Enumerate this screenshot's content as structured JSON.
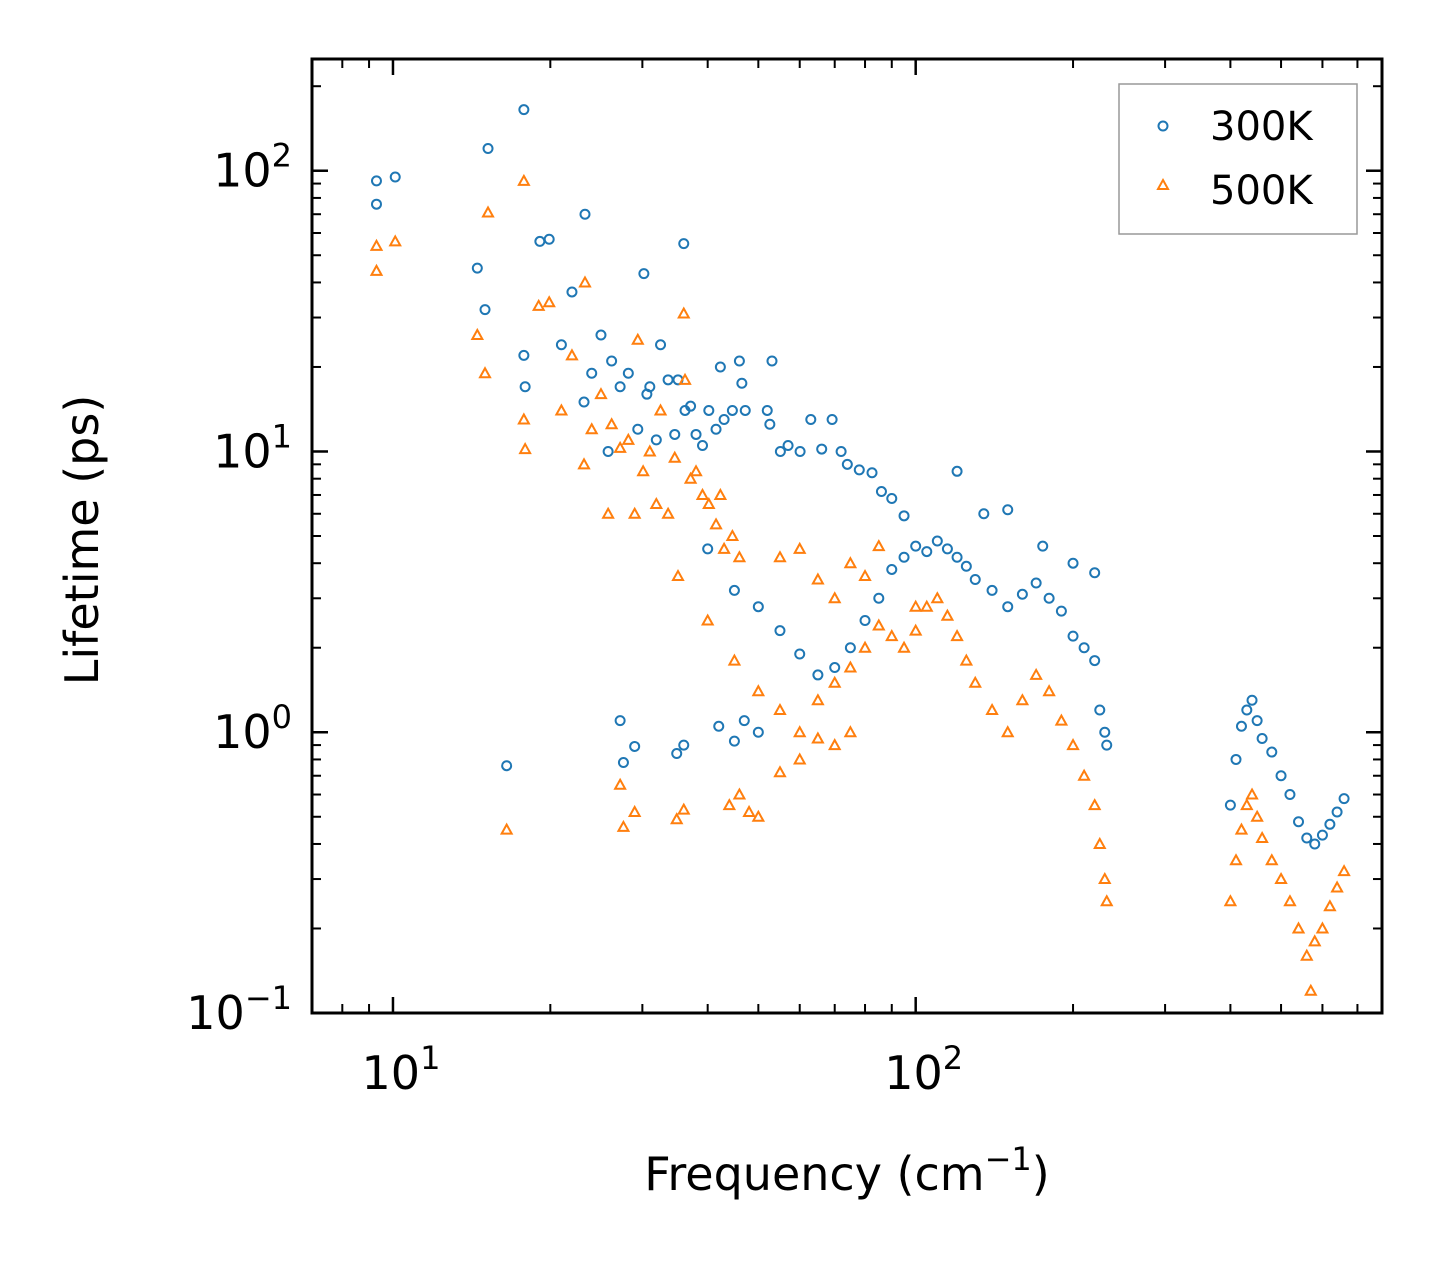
{
  "chart_data": {
    "type": "scatter",
    "title": "",
    "xlabel": "Frequency (cm⁻¹)",
    "xlabel_parts": {
      "main": "Frequency (cm",
      "sup": "−1",
      "close": ")"
    },
    "ylabel": "Lifetime (ps)",
    "xscale": "log",
    "yscale": "log",
    "xlim": [
      7,
      780
    ],
    "ylim": [
      0.1,
      250
    ],
    "x_tick_labels": [
      {
        "value": 10,
        "base": "10",
        "exp": "1"
      },
      {
        "value": 100,
        "base": "10",
        "exp": "2"
      }
    ],
    "y_tick_labels": [
      {
        "value": 0.1,
        "base": "10",
        "exp": "−1"
      },
      {
        "value": 1,
        "base": "10",
        "exp": "0"
      },
      {
        "value": 10,
        "base": "10",
        "exp": "1"
      },
      {
        "value": 100,
        "base": "10",
        "exp": "2"
      }
    ],
    "legend_position": "top-right",
    "series": [
      {
        "name": "300K",
        "marker": "circle",
        "color": "#1f77b4",
        "points": [
          [
            9.3,
            92
          ],
          [
            9.3,
            76
          ],
          [
            10.1,
            95
          ],
          [
            14.5,
            45
          ],
          [
            15.2,
            120
          ],
          [
            15.0,
            32
          ],
          [
            17.8,
            165
          ],
          [
            17.8,
            22
          ],
          [
            17.9,
            17
          ],
          [
            19.1,
            56
          ],
          [
            19.9,
            57
          ],
          [
            21.0,
            24
          ],
          [
            22.0,
            37
          ],
          [
            23.3,
            70
          ],
          [
            23.2,
            15
          ],
          [
            24.0,
            19
          ],
          [
            25.0,
            26
          ],
          [
            25.8,
            10
          ],
          [
            26.2,
            21
          ],
          [
            27.2,
            17
          ],
          [
            28.2,
            19
          ],
          [
            29.4,
            12
          ],
          [
            30.2,
            43
          ],
          [
            31.0,
            17
          ],
          [
            30.6,
            16
          ],
          [
            31.9,
            11
          ],
          [
            32.5,
            24
          ],
          [
            33.6,
            18
          ],
          [
            34.6,
            11.5
          ],
          [
            35.1,
            18
          ],
          [
            36.0,
            55
          ],
          [
            36.2,
            14
          ],
          [
            37.1,
            14.5
          ],
          [
            38.0,
            11.5
          ],
          [
            39.1,
            10.5
          ],
          [
            40.2,
            14
          ],
          [
            41.5,
            12
          ],
          [
            42.3,
            20
          ],
          [
            43.0,
            13
          ],
          [
            44.6,
            14
          ],
          [
            46.0,
            21
          ],
          [
            46.5,
            17.5
          ],
          [
            47.2,
            14
          ],
          [
            53.1,
            21
          ],
          [
            52.0,
            14
          ],
          [
            52.6,
            12.5
          ],
          [
            55.1,
            10
          ],
          [
            57.0,
            10.5
          ],
          [
            60.1,
            10
          ],
          [
            63.0,
            13
          ],
          [
            66.1,
            10.2
          ],
          [
            69.2,
            13
          ],
          [
            72.0,
            10
          ],
          [
            74.0,
            9
          ],
          [
            78.0,
            8.6
          ],
          [
            82.5,
            8.4
          ],
          [
            86.0,
            7.2
          ],
          [
            90.0,
            6.8
          ],
          [
            95.0,
            5.9
          ],
          [
            120.0,
            8.5
          ],
          [
            135.0,
            6.0
          ],
          [
            150.0,
            6.2
          ],
          [
            175.0,
            4.6
          ],
          [
            200.0,
            4.0
          ],
          [
            220.0,
            3.7
          ],
          [
            16.5,
            0.76
          ],
          [
            27.2,
            1.1
          ],
          [
            27.6,
            0.78
          ],
          [
            29.0,
            0.89
          ],
          [
            34.9,
            0.84
          ],
          [
            36.0,
            0.9
          ],
          [
            42.0,
            1.05
          ],
          [
            45.0,
            0.93
          ],
          [
            47.0,
            1.1
          ],
          [
            50.0,
            1.0
          ],
          [
            40.0,
            4.5
          ],
          [
            45.0,
            3.2
          ],
          [
            50.0,
            2.8
          ],
          [
            55.0,
            2.3
          ],
          [
            60.0,
            1.9
          ],
          [
            65.0,
            1.6
          ],
          [
            70.0,
            1.7
          ],
          [
            75.0,
            2.0
          ],
          [
            80.0,
            2.5
          ],
          [
            85.0,
            3.0
          ],
          [
            90.0,
            3.8
          ],
          [
            95.0,
            4.2
          ],
          [
            100.0,
            4.6
          ],
          [
            105.0,
            4.4
          ],
          [
            110.0,
            4.8
          ],
          [
            115.0,
            4.5
          ],
          [
            120.0,
            4.2
          ],
          [
            125.0,
            3.9
          ],
          [
            130.0,
            3.5
          ],
          [
            140.0,
            3.2
          ],
          [
            150.0,
            2.8
          ],
          [
            160.0,
            3.1
          ],
          [
            170.0,
            3.4
          ],
          [
            180.0,
            3.0
          ],
          [
            190.0,
            2.7
          ],
          [
            200.0,
            2.2
          ],
          [
            210.0,
            2.0
          ],
          [
            220.0,
            1.8
          ],
          [
            225.0,
            1.2
          ],
          [
            230.0,
            1.0
          ],
          [
            232.0,
            0.9
          ],
          [
            400.0,
            0.55
          ],
          [
            410.0,
            0.8
          ],
          [
            420.0,
            1.05
          ],
          [
            430.0,
            1.2
          ],
          [
            440.0,
            1.3
          ],
          [
            450.0,
            1.1
          ],
          [
            460.0,
            0.95
          ],
          [
            480.0,
            0.85
          ],
          [
            500.0,
            0.7
          ],
          [
            520.0,
            0.6
          ],
          [
            540.0,
            0.48
          ],
          [
            560.0,
            0.42
          ],
          [
            580.0,
            0.4
          ],
          [
            600.0,
            0.43
          ],
          [
            620.0,
            0.47
          ],
          [
            640.0,
            0.52
          ],
          [
            660.0,
            0.58
          ]
        ]
      },
      {
        "name": "500K",
        "marker": "triangle",
        "color": "#ff7f0e",
        "points": [
          [
            9.3,
            54
          ],
          [
            9.3,
            44
          ],
          [
            10.1,
            56
          ],
          [
            14.5,
            26
          ],
          [
            15.0,
            19
          ],
          [
            15.2,
            71
          ],
          [
            16.5,
            0.45
          ],
          [
            17.8,
            92
          ],
          [
            17.8,
            13
          ],
          [
            17.9,
            10.2
          ],
          [
            19.0,
            33
          ],
          [
            19.9,
            34
          ],
          [
            21.0,
            14
          ],
          [
            22.0,
            22
          ],
          [
            23.2,
            9
          ],
          [
            23.3,
            40
          ],
          [
            24.0,
            12
          ],
          [
            25.0,
            16
          ],
          [
            25.8,
            6
          ],
          [
            26.2,
            12.5
          ],
          [
            27.2,
            10.3
          ],
          [
            28.2,
            11
          ],
          [
            29.0,
            6
          ],
          [
            29.4,
            25
          ],
          [
            30.1,
            8.5
          ],
          [
            31.0,
            10
          ],
          [
            31.9,
            6.5
          ],
          [
            32.5,
            14
          ],
          [
            33.6,
            6
          ],
          [
            34.6,
            9.5
          ],
          [
            35.1,
            3.6
          ],
          [
            36.0,
            31
          ],
          [
            36.2,
            18
          ],
          [
            37.1,
            8
          ],
          [
            38.0,
            8.5
          ],
          [
            39.1,
            7
          ],
          [
            40.2,
            6.5
          ],
          [
            41.5,
            5.5
          ],
          [
            42.3,
            7
          ],
          [
            43.0,
            4.5
          ],
          [
            44.6,
            5
          ],
          [
            46.0,
            4.2
          ],
          [
            27.2,
            0.65
          ],
          [
            27.6,
            0.46
          ],
          [
            29.0,
            0.52
          ],
          [
            34.9,
            0.49
          ],
          [
            36.0,
            0.53
          ],
          [
            44.0,
            0.55
          ],
          [
            46.0,
            0.6
          ],
          [
            48.0,
            0.52
          ],
          [
            50.0,
            0.5
          ],
          [
            55.0,
            0.72
          ],
          [
            60.0,
            0.8
          ],
          [
            65.0,
            0.95
          ],
          [
            70.0,
            0.9
          ],
          [
            75.0,
            1.0
          ],
          [
            40.0,
            2.5
          ],
          [
            45.0,
            1.8
          ],
          [
            50.0,
            1.4
          ],
          [
            55.0,
            1.2
          ],
          [
            60.0,
            1.0
          ],
          [
            65.0,
            1.3
          ],
          [
            70.0,
            1.5
          ],
          [
            75.0,
            1.7
          ],
          [
            80.0,
            2.0
          ],
          [
            85.0,
            2.4
          ],
          [
            90.0,
            2.2
          ],
          [
            95.0,
            2.0
          ],
          [
            100.0,
            2.3
          ],
          [
            105.0,
            2.8
          ],
          [
            110.0,
            3.0
          ],
          [
            115.0,
            2.6
          ],
          [
            120.0,
            2.2
          ],
          [
            125.0,
            1.8
          ],
          [
            130.0,
            1.5
          ],
          [
            140.0,
            1.2
          ],
          [
            150.0,
            1.0
          ],
          [
            160.0,
            1.3
          ],
          [
            170.0,
            1.6
          ],
          [
            180.0,
            1.4
          ],
          [
            190.0,
            1.1
          ],
          [
            200.0,
            0.9
          ],
          [
            210.0,
            0.7
          ],
          [
            220.0,
            0.55
          ],
          [
            225.0,
            0.4
          ],
          [
            230.0,
            0.3
          ],
          [
            232.0,
            0.25
          ],
          [
            400.0,
            0.25
          ],
          [
            410.0,
            0.35
          ],
          [
            420.0,
            0.45
          ],
          [
            430.0,
            0.55
          ],
          [
            440.0,
            0.6
          ],
          [
            450.0,
            0.5
          ],
          [
            460.0,
            0.42
          ],
          [
            480.0,
            0.35
          ],
          [
            500.0,
            0.3
          ],
          [
            520.0,
            0.25
          ],
          [
            540.0,
            0.2
          ],
          [
            560.0,
            0.16
          ],
          [
            570.0,
            0.12
          ],
          [
            580.0,
            0.18
          ],
          [
            600.0,
            0.2
          ],
          [
            620.0,
            0.24
          ],
          [
            640.0,
            0.28
          ],
          [
            660.0,
            0.32
          ],
          [
            55.0,
            4.2
          ],
          [
            60.0,
            4.5
          ],
          [
            65.0,
            3.5
          ],
          [
            70.0,
            3.0
          ],
          [
            75.0,
            4.0
          ],
          [
            80.0,
            3.6
          ],
          [
            85.0,
            4.6
          ],
          [
            100.0,
            2.8
          ]
        ]
      }
    ]
  }
}
